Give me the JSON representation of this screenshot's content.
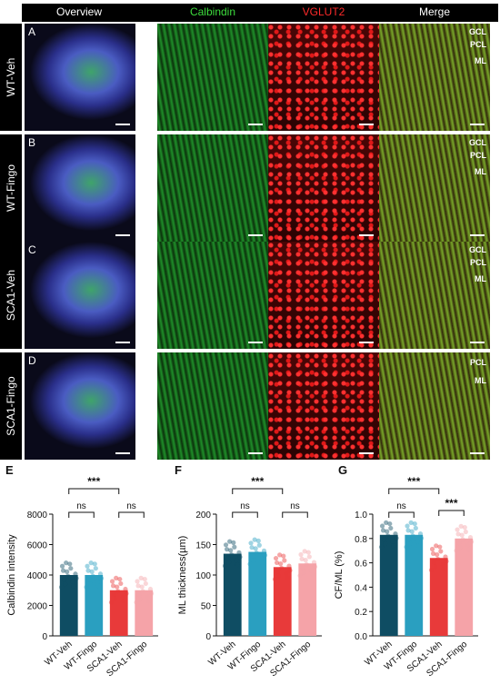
{
  "columns": [
    "Overview",
    "Calbindin",
    "VGLUT2",
    "Merge"
  ],
  "column_colors": [
    "#ffffff",
    "#3ddc3d",
    "#ff2a2a",
    "#ffffff"
  ],
  "rows": [
    {
      "label": "WT-Veh",
      "panel_letter": "A",
      "layers": [
        "GCL",
        "PCL",
        "ML"
      ]
    },
    {
      "label": "WT-Fingo",
      "panel_letter": "B",
      "layers": [
        "GCL",
        "PCL",
        "ML"
      ]
    },
    {
      "label": "SCA1-Veh",
      "panel_letter": "C",
      "layers": [
        "GCL",
        "PCL",
        "ML"
      ]
    },
    {
      "label": "SCA1-Fingo",
      "panel_letter": "D",
      "layers": [
        "PCL",
        "ML"
      ]
    }
  ],
  "bar_colors": [
    "#0f4d63",
    "#2a9fc0",
    "#e83a3a",
    "#f5a3a8"
  ],
  "chart_data": [
    {
      "panel": "E",
      "type": "bar",
      "categories": [
        "WT-Veh",
        "WT-Fingo",
        "SCA1-Veh",
        "SCA1-Fingo"
      ],
      "values": [
        4000,
        4000,
        3000,
        3000
      ],
      "ylabel": "Calbindin intensity",
      "ylim": [
        0,
        8000
      ],
      "yticks": [
        0,
        2000,
        4000,
        6000,
        8000
      ],
      "significance": [
        {
          "from": 0,
          "to": 2,
          "label": "***"
        },
        {
          "from": 0,
          "to": 1,
          "label": "ns"
        },
        {
          "from": 2,
          "to": 3,
          "label": "ns"
        }
      ]
    },
    {
      "panel": "F",
      "type": "bar",
      "categories": [
        "WT-Veh",
        "WT-Fingo",
        "SCA1-Veh",
        "SCA1-Fingo"
      ],
      "values": [
        135,
        138,
        113,
        119
      ],
      "ylabel": "ML thickness(µm)",
      "ylim": [
        0,
        200
      ],
      "yticks": [
        0,
        50,
        100,
        150,
        200
      ],
      "significance": [
        {
          "from": 0,
          "to": 2,
          "label": "***"
        },
        {
          "from": 0,
          "to": 1,
          "label": "ns"
        },
        {
          "from": 2,
          "to": 3,
          "label": "ns"
        }
      ]
    },
    {
      "panel": "G",
      "type": "bar",
      "categories": [
        "WT-Veh",
        "WT-Fingo",
        "SCA1-Veh",
        "SCA1-Fingo"
      ],
      "values": [
        0.83,
        0.83,
        0.64,
        0.8
      ],
      "ylabel": "CF/ML (%)",
      "ylim": [
        0,
        1.0
      ],
      "yticks": [
        0.0,
        0.2,
        0.4,
        0.6,
        0.8,
        1.0
      ],
      "significance": [
        {
          "from": 0,
          "to": 2,
          "label": "***"
        },
        {
          "from": 0,
          "to": 1,
          "label": "ns"
        },
        {
          "from": 2,
          "to": 3,
          "label": "***"
        }
      ]
    }
  ]
}
